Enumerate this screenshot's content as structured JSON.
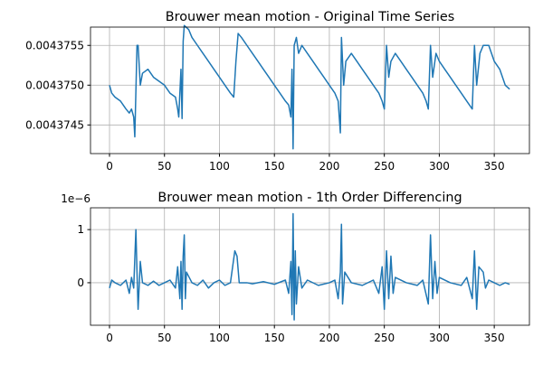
{
  "chart_data": [
    {
      "type": "line",
      "title": "Brouwer mean motion - Original Time Series",
      "color": "#1f77b4",
      "grid": true,
      "x": [
        0,
        2,
        5,
        10,
        15,
        18,
        20,
        22,
        23,
        25,
        26,
        28,
        30,
        35,
        40,
        45,
        50,
        55,
        60,
        62,
        63,
        65,
        66,
        67,
        68,
        72,
        75,
        80,
        85,
        90,
        95,
        100,
        105,
        110,
        113,
        115,
        117,
        120,
        125,
        130,
        135,
        140,
        145,
        150,
        155,
        160,
        163,
        165,
        166,
        167,
        168,
        170,
        172,
        175,
        180,
        185,
        190,
        195,
        200,
        205,
        208,
        210,
        211,
        213,
        215,
        220,
        225,
        230,
        235,
        240,
        245,
        248,
        250,
        252,
        254,
        256,
        260,
        265,
        270,
        275,
        280,
        285,
        288,
        290,
        292,
        294,
        297,
        300,
        305,
        310,
        315,
        320,
        325,
        330,
        332,
        334,
        337,
        340,
        345,
        350,
        355,
        360,
        364
      ],
      "values": [
        0.004375,
        0.0043749,
        0.00437485,
        0.0043748,
        0.0043747,
        0.00437465,
        0.0043747,
        0.0043746,
        0.00437435,
        0.0043755,
        0.0043755,
        0.004375,
        0.00437515,
        0.0043752,
        0.0043751,
        0.00437505,
        0.004375,
        0.0043749,
        0.00437485,
        0.0043747,
        0.0043746,
        0.0043752,
        0.00437458,
        0.00437555,
        0.00437575,
        0.0043757,
        0.0043756,
        0.0043755,
        0.0043754,
        0.0043753,
        0.0043752,
        0.0043751,
        0.004375,
        0.0043749,
        0.00437485,
        0.0043753,
        0.00437565,
        0.0043756,
        0.0043755,
        0.0043754,
        0.0043753,
        0.0043752,
        0.0043751,
        0.004375,
        0.0043749,
        0.0043748,
        0.00437475,
        0.0043746,
        0.0043752,
        0.0043742,
        0.0043755,
        0.0043756,
        0.0043754,
        0.0043755,
        0.0043754,
        0.0043753,
        0.0043752,
        0.0043751,
        0.004375,
        0.0043749,
        0.0043748,
        0.0043744,
        0.0043756,
        0.004375,
        0.0043753,
        0.0043754,
        0.0043753,
        0.0043752,
        0.0043751,
        0.004375,
        0.0043749,
        0.0043748,
        0.0043747,
        0.0043755,
        0.0043751,
        0.0043753,
        0.0043754,
        0.0043753,
        0.0043752,
        0.0043751,
        0.004375,
        0.0043749,
        0.0043748,
        0.0043747,
        0.0043755,
        0.0043751,
        0.0043754,
        0.0043753,
        0.0043752,
        0.0043751,
        0.004375,
        0.0043749,
        0.0043748,
        0.0043747,
        0.0043755,
        0.004375,
        0.0043754,
        0.0043755,
        0.0043755,
        0.0043753,
        0.0043752,
        0.004375,
        0.00437495
      ],
      "xlim": [
        -17.3,
        382
      ],
      "ylim": [
        0.00437414,
        0.00437573
      ],
      "xticks": [
        0,
        50,
        100,
        150,
        200,
        250,
        300,
        350
      ],
      "yticks": [
        0.0043745,
        {
          "value": 0.004375,
          "label": "0.0043750"
        },
        0.0043755
      ]
    },
    {
      "type": "line",
      "title": "Brouwer mean motion - 1th Order Differencing",
      "color": "#1f77b4",
      "grid": true,
      "y_offset_text": "1e−6",
      "x": [
        0,
        2,
        5,
        10,
        15,
        18,
        20,
        22,
        24,
        25,
        26,
        28,
        30,
        35,
        40,
        45,
        50,
        55,
        60,
        62,
        64,
        65,
        66,
        67,
        68,
        69,
        70,
        75,
        80,
        85,
        90,
        95,
        100,
        105,
        110,
        114,
        116,
        118,
        125,
        130,
        140,
        150,
        160,
        163,
        165,
        166,
        167,
        168,
        169,
        170,
        172,
        175,
        180,
        190,
        200,
        205,
        208,
        210,
        211,
        212,
        214,
        220,
        230,
        240,
        245,
        248,
        250,
        252,
        254,
        256,
        258,
        260,
        270,
        280,
        285,
        290,
        292,
        294,
        296,
        298,
        300,
        310,
        320,
        325,
        330,
        332,
        334,
        336,
        340,
        342,
        345,
        350,
        355,
        360,
        364
      ],
      "values": [
        -0.1,
        0.05,
        0,
        -0.05,
        0.05,
        -0.2,
        0.1,
        -0.1,
        1.0,
        0.2,
        -0.5,
        0.4,
        0,
        -0.05,
        0.03,
        -0.05,
        0,
        0.05,
        -0.1,
        0.3,
        -0.3,
        0.4,
        -0.5,
        0.5,
        0.9,
        -0.3,
        0.2,
        0,
        -0.05,
        0.05,
        -0.1,
        0,
        0.05,
        -0.05,
        0,
        0.6,
        0.5,
        0,
        0,
        -0.02,
        0.02,
        -0.03,
        0.05,
        -0.2,
        0.4,
        -0.6,
        1.3,
        -0.7,
        0.6,
        -0.4,
        0.3,
        -0.1,
        0.05,
        -0.05,
        0,
        0.05,
        -0.3,
        0.2,
        1.1,
        -0.4,
        0.2,
        0,
        -0.05,
        0.05,
        -0.2,
        0.3,
        -0.5,
        0.6,
        -0.3,
        0.5,
        -0.2,
        0.1,
        0,
        -0.05,
        0.05,
        -0.4,
        0.9,
        -0.3,
        0.4,
        -0.2,
        0.1,
        0,
        -0.05,
        0.1,
        -0.3,
        0.6,
        -0.5,
        0.3,
        0.2,
        -0.1,
        0.05,
        0,
        -0.05,
        0,
        -0.03
      ],
      "xlim": [
        -17.3,
        382
      ],
      "ylim": [
        -0.8,
        1.41
      ],
      "xticks": [
        0,
        50,
        100,
        150,
        200,
        250,
        300,
        350
      ],
      "yticks": [
        0,
        1
      ]
    }
  ]
}
